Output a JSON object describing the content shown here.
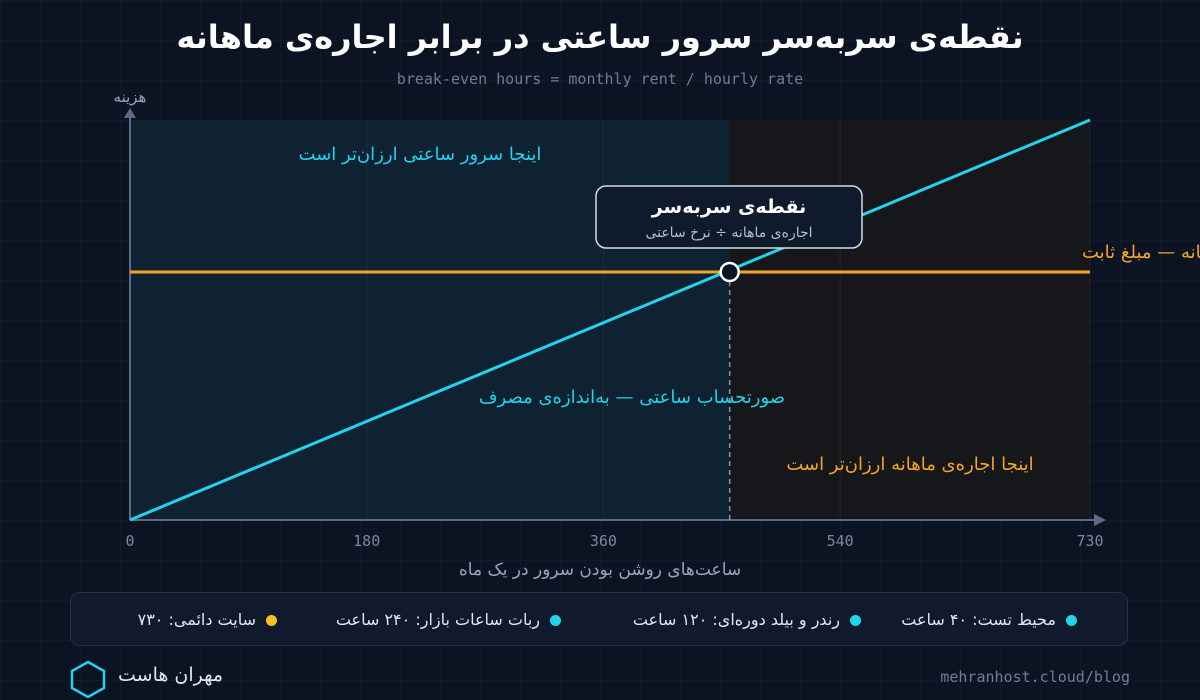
{
  "header": {
    "title": "نقطه‌ی سربه‌سر سرور ساعتی در برابر اجاره‌ی ماهانه",
    "subtitle": "break-even hours = monthly rent / hourly rate"
  },
  "chart_data": {
    "type": "line",
    "title": "نقطه‌ی سربه‌سر سرور ساعتی در برابر اجاره‌ی ماهانه",
    "xlabel": "ساعت‌های روشن بودن سرور در یک ماه",
    "ylabel": "هزینه",
    "xlim": [
      0,
      730
    ],
    "x_ticks": [
      "0",
      "180",
      "360",
      "540",
      "730"
    ],
    "ylim": [
      0,
      1
    ],
    "grid": true,
    "series": [
      {
        "name": "صورتحساب ساعتی — به‌اندازه‌ی مصرف",
        "color": "#22d3ee",
        "x": [
          0,
          730
        ],
        "y": [
          0,
          1
        ]
      },
      {
        "name": "اجاره‌ی ماهانه — مبلغ ثابت",
        "color": "#f5a524",
        "x": [
          0,
          730
        ],
        "y": [
          0.62,
          0.62
        ]
      }
    ],
    "break_even": {
      "x": 456,
      "title": "نقطه‌ی سربه‌سر",
      "formula": "اجاره‌ی ماهانه ÷ نرخ ساعتی"
    },
    "regions": {
      "hourly_cheaper": "اینجا سرور ساعتی ارزان‌تر است",
      "monthly_cheaper": "اینجا اجاره‌ی ماهانه ارزان‌تر است"
    }
  },
  "legend": {
    "items": [
      {
        "label": "محیط تست: ۴۰ ساعت",
        "color": "#22d3ee"
      },
      {
        "label": "رندر و بیلد دوره‌ای: ۱۲۰ ساعت",
        "color": "#22d3ee"
      },
      {
        "label": "ربات ساعات بازار: ۲۴۰ ساعت",
        "color": "#22d3ee"
      },
      {
        "label": "سایت دائمی: ۷۳۰",
        "color": "#fbbf24"
      }
    ]
  },
  "footer": {
    "brand": "مهران هاست",
    "site": "mehranhost.cloud/blog"
  }
}
